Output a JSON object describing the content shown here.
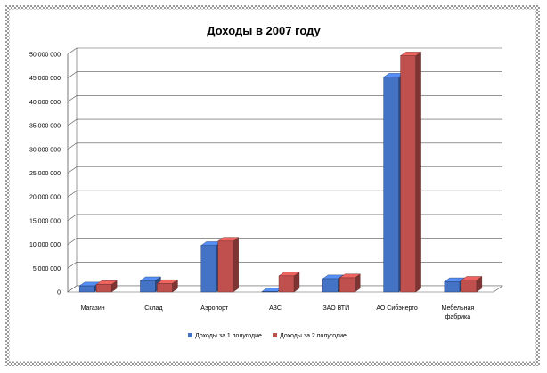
{
  "chart_data": {
    "type": "bar",
    "title": "Доходы в 2007 году",
    "categories": [
      "Магазин",
      "Склад",
      "Аэропорт",
      "АЗС",
      "ЗАО ВТИ",
      "АО Сибэнерго",
      "Мебельная фабрика"
    ],
    "category_lines": [
      [
        "Магазин"
      ],
      [
        "Склад"
      ],
      [
        "Аэропорт"
      ],
      [
        "АЗС"
      ],
      [
        "ЗАО ВТИ"
      ],
      [
        "АО Сибэнерго"
      ],
      [
        "Мебельная",
        "фабрика"
      ]
    ],
    "series": [
      {
        "name": "Доходы за 1 полугодие",
        "values": [
          1300000,
          2400000,
          9800000,
          100000,
          2800000,
          45200000,
          2200000
        ],
        "color": "#4472c4"
      },
      {
        "name": "Доходы за 2 полугодие",
        "values": [
          1600000,
          1800000,
          10700000,
          3400000,
          3000000,
          49700000,
          2500000
        ],
        "color": "#c0504d"
      }
    ],
    "y_ticks": [
      "0",
      "5 000 000",
      "10 000 000",
      "15 000 000",
      "20 000 000",
      "25 000 000",
      "30 000 000",
      "35 000 000",
      "40 000 000",
      "45 000 000",
      "50 000 000"
    ],
    "ylim": [
      0,
      50000000
    ],
    "grid": true,
    "legend_position": "bottom"
  }
}
